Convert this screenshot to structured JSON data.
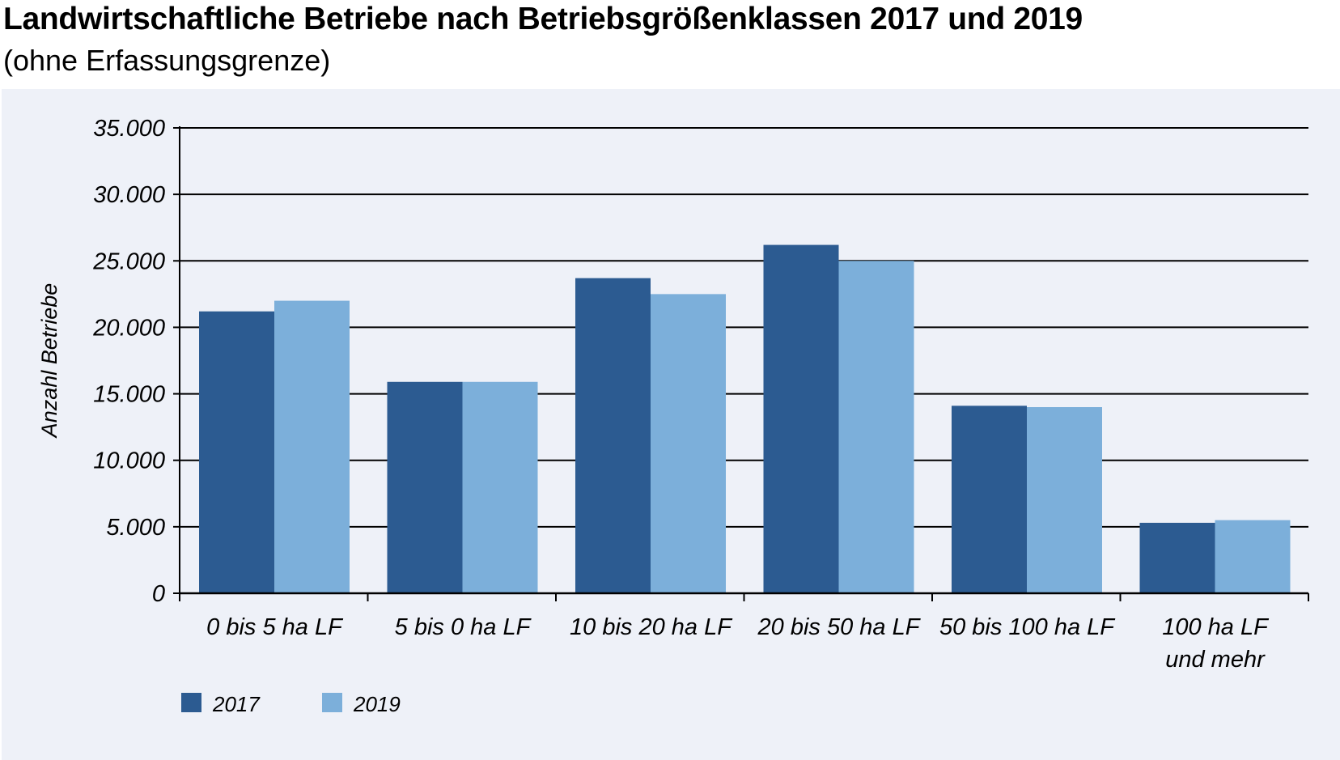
{
  "chart_data": {
    "type": "bar",
    "title": "Landwirtschaftliche Betriebe nach Betriebsgrößenklassen 2017 und 2019",
    "subtitle": "(ohne Erfassungsgrenze)",
    "ylabel": "Anzahl Betriebe",
    "xlabel": "",
    "ylim": [
      0,
      35000
    ],
    "yticks": [
      0,
      5000,
      10000,
      15000,
      20000,
      25000,
      30000,
      35000
    ],
    "ytick_labels": [
      "0",
      "5.000",
      "10.000",
      "15.000",
      "20.000",
      "25.000",
      "30.000",
      "35.000"
    ],
    "categories": [
      [
        "0 bis 5 ha LF"
      ],
      [
        "5 bis 0 ha LF"
      ],
      [
        "10 bis 20 ha LF"
      ],
      [
        "20 bis 50 ha LF"
      ],
      [
        "50 bis 100 ha LF"
      ],
      [
        "100 ha LF",
        "und mehr"
      ]
    ],
    "series": [
      {
        "name": "2017",
        "color": "#2c5b91",
        "values": [
          21200,
          15900,
          23700,
          26200,
          14100,
          5300
        ]
      },
      {
        "name": "2019",
        "color": "#7cafda",
        "values": [
          22000,
          15900,
          22500,
          25000,
          14000,
          5500
        ]
      }
    ],
    "grid": true,
    "legend": "bottom-left"
  }
}
